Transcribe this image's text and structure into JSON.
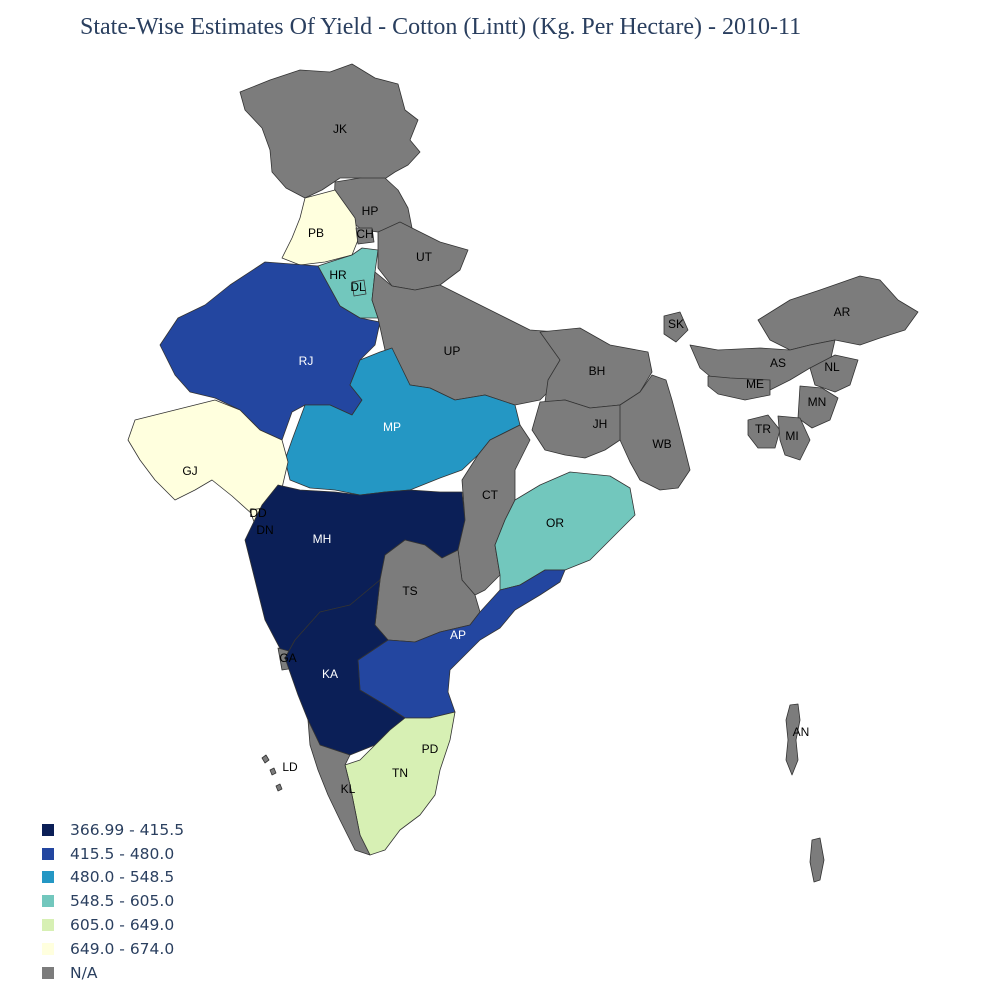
{
  "title": "State-Wise Estimates Of Yield - Cotton (Lintt) (Kg. Per Hectare) - 2010-11",
  "legend": [
    {
      "label": "366.99 - 415.5",
      "color": "#0b1f57"
    },
    {
      "label": "415.5 - 480.0",
      "color": "#2346a0"
    },
    {
      "label": "480.0 - 548.5",
      "color": "#2497c4"
    },
    {
      "label": "548.5 - 605.0",
      "color": "#72c7bd"
    },
    {
      "label": "605.0 - 649.0",
      "color": "#d7f0b4"
    },
    {
      "label": "649.0 - 674.0",
      "color": "#ffffde"
    },
    {
      "label": "N/A",
      "color": "#7c7c7c"
    }
  ],
  "states": [
    {
      "code": "JK",
      "class": 6
    },
    {
      "code": "HP",
      "class": 6
    },
    {
      "code": "PB",
      "class": 5
    },
    {
      "code": "CH",
      "class": 6
    },
    {
      "code": "UT",
      "class": 6
    },
    {
      "code": "HR",
      "class": 3
    },
    {
      "code": "DL",
      "class": 3
    },
    {
      "code": "RJ",
      "class": 1
    },
    {
      "code": "UP",
      "class": 6
    },
    {
      "code": "SK",
      "class": 6
    },
    {
      "code": "AR",
      "class": 6
    },
    {
      "code": "AS",
      "class": 6
    },
    {
      "code": "NL",
      "class": 6
    },
    {
      "code": "ME",
      "class": 6
    },
    {
      "code": "MN",
      "class": 6
    },
    {
      "code": "TR",
      "class": 6
    },
    {
      "code": "MI",
      "class": 6
    },
    {
      "code": "BH",
      "class": 6
    },
    {
      "code": "JH",
      "class": 6
    },
    {
      "code": "WB",
      "class": 6
    },
    {
      "code": "MP",
      "class": 2
    },
    {
      "code": "GJ",
      "class": 5
    },
    {
      "code": "DD",
      "class": 5
    },
    {
      "code": "DN",
      "class": 5
    },
    {
      "code": "MH",
      "class": 0
    },
    {
      "code": "CT",
      "class": 6
    },
    {
      "code": "OR",
      "class": 3
    },
    {
      "code": "TS",
      "class": 6
    },
    {
      "code": "AP",
      "class": 1
    },
    {
      "code": "GA",
      "class": 6
    },
    {
      "code": "KA",
      "class": 0
    },
    {
      "code": "PD",
      "class": 4
    },
    {
      "code": "TN",
      "class": 4
    },
    {
      "code": "KL",
      "class": 6
    },
    {
      "code": "LD",
      "class": 6
    },
    {
      "code": "AN",
      "class": 6
    }
  ]
}
